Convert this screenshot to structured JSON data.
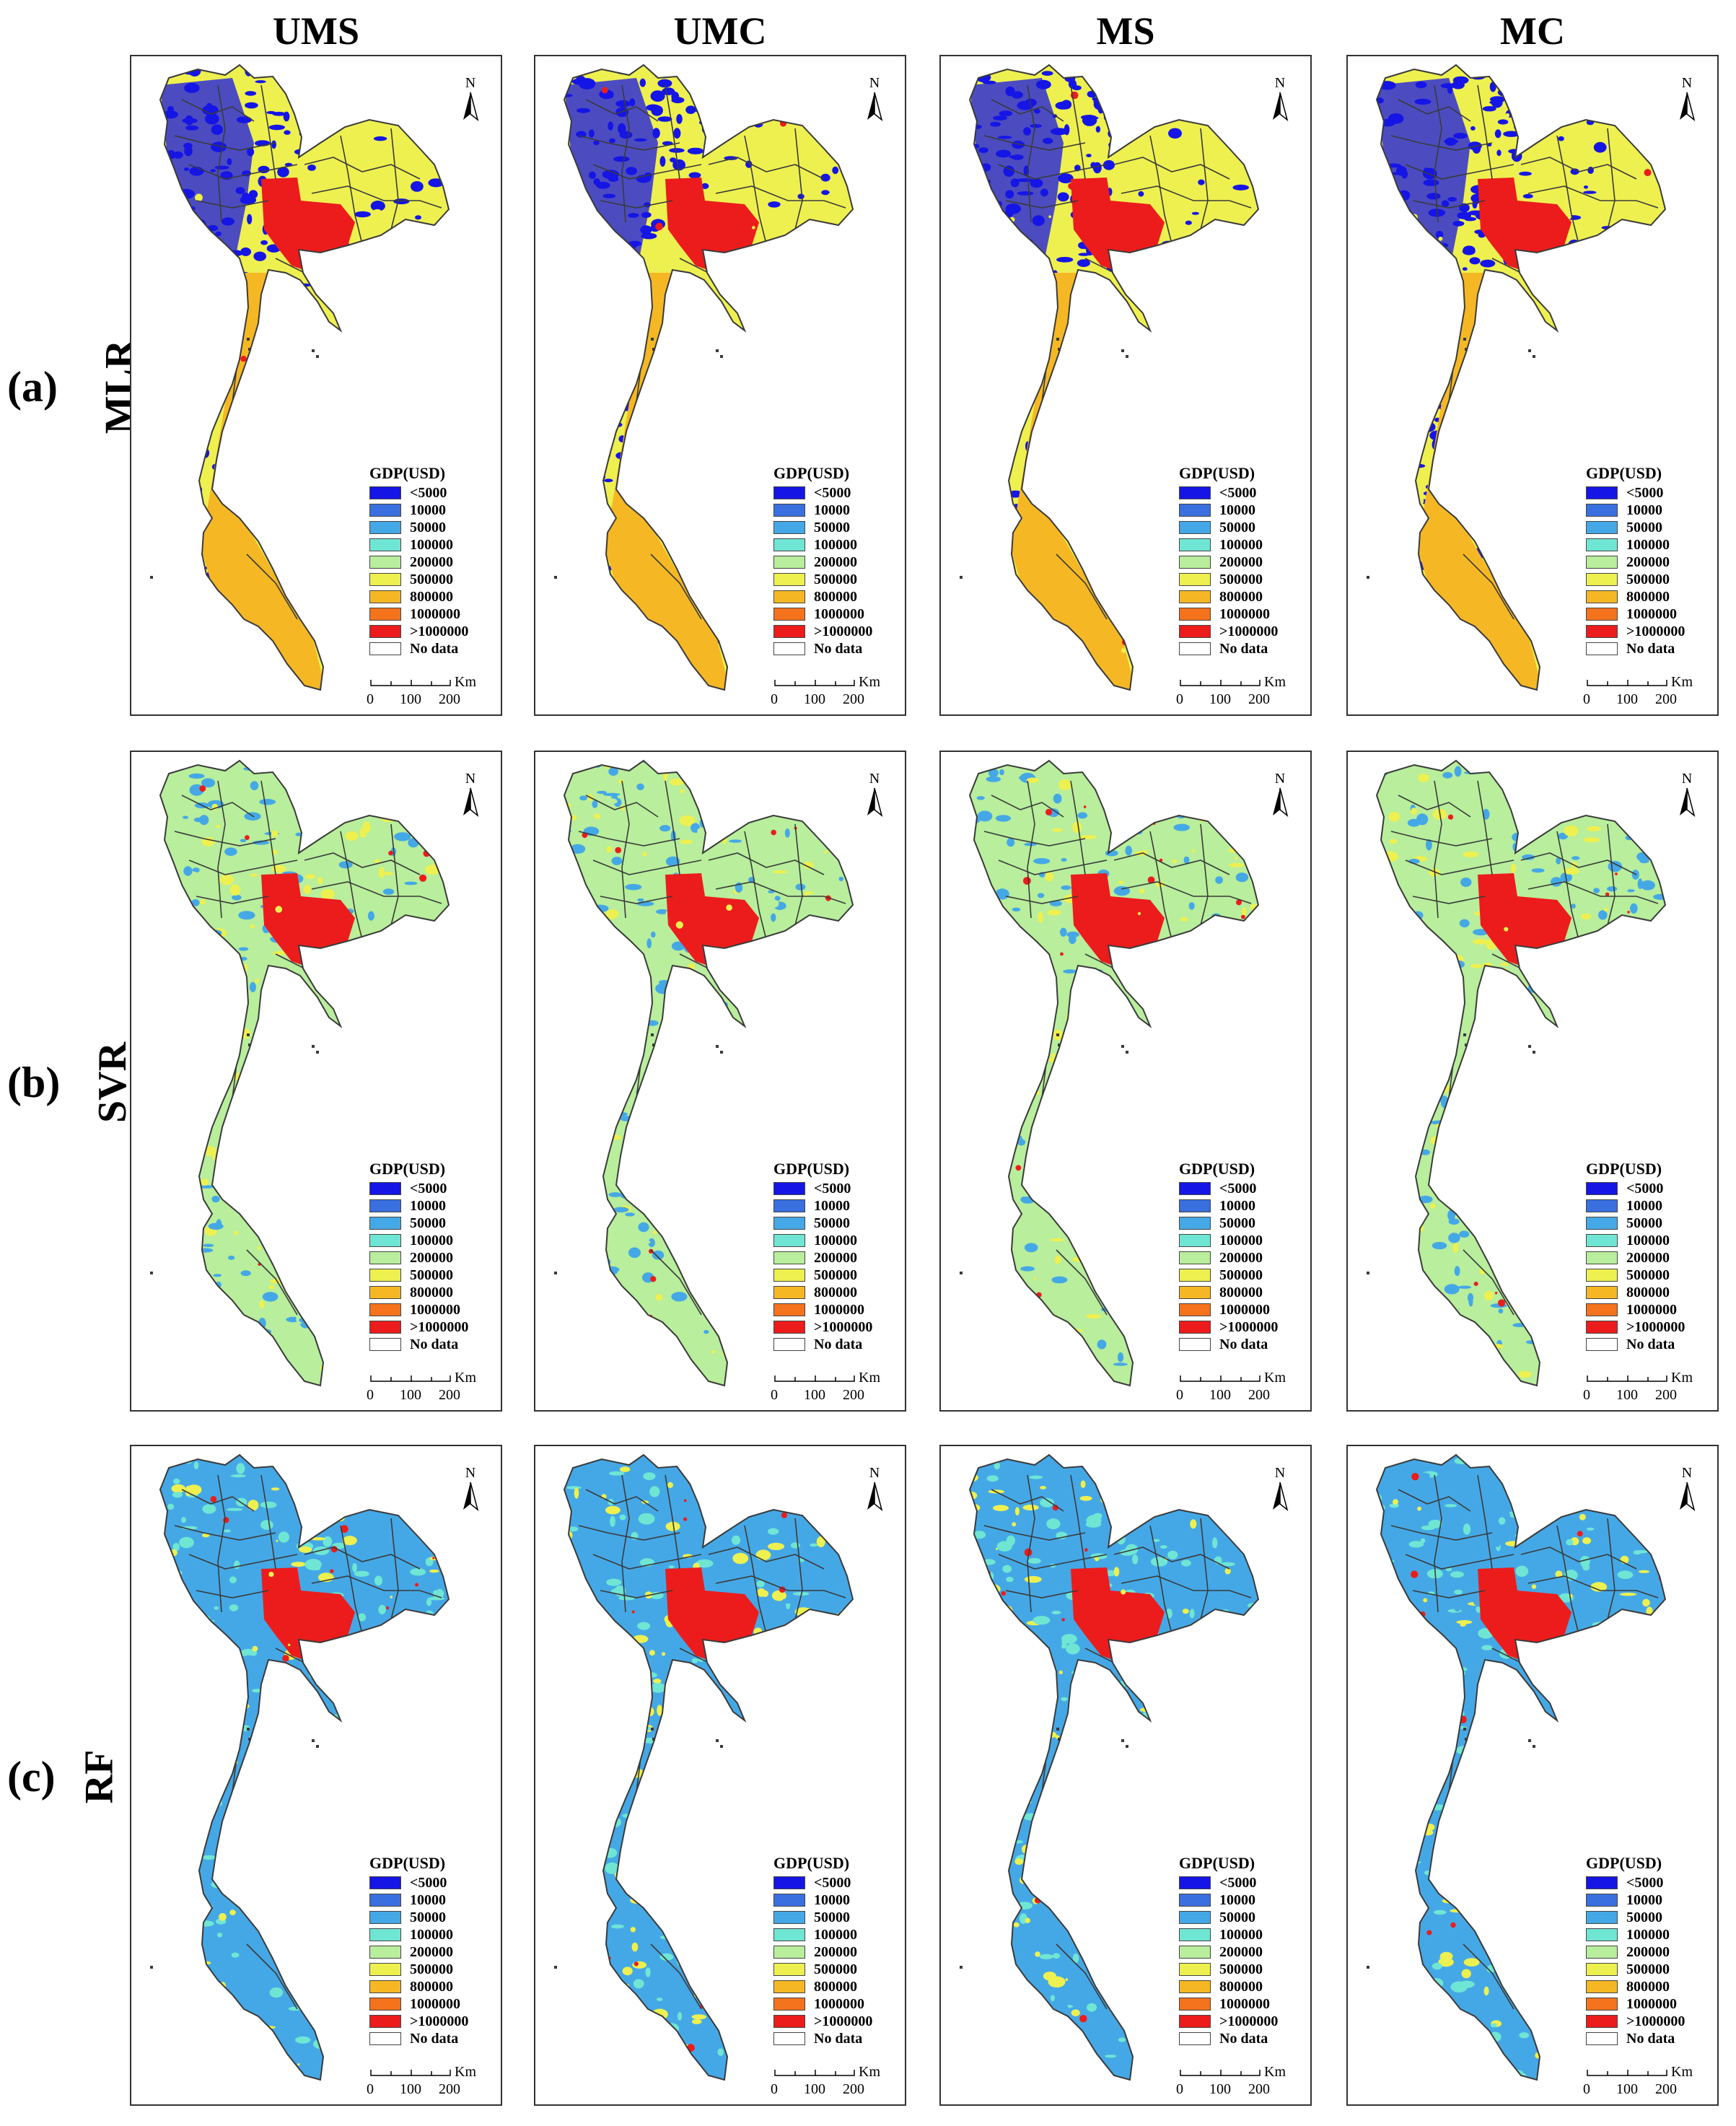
{
  "columns": [
    "UMS",
    "UMC",
    "MS",
    "MC"
  ],
  "rows": [
    {
      "letter": "(a)",
      "model": "MLR",
      "palette": "mlr"
    },
    {
      "letter": "(b)",
      "model": "SVR",
      "palette": "svr"
    },
    {
      "letter": "(c)",
      "model": "RF",
      "palette": "rf"
    }
  ],
  "legend": {
    "title": "GDP(USD)",
    "items": [
      {
        "label": "<5000",
        "color": "#1515e6"
      },
      {
        "label": "10000",
        "color": "#3a6fe0"
      },
      {
        "label": "50000",
        "color": "#45a8e6"
      },
      {
        "label": "100000",
        "color": "#6fe6d4"
      },
      {
        "label": "200000",
        "color": "#b8ee9c"
      },
      {
        "label": "500000",
        "color": "#eef050"
      },
      {
        "label": "800000",
        "color": "#f5b824"
      },
      {
        "label": "1000000",
        "color": "#f4731c"
      },
      {
        "label": ">1000000",
        "color": "#ec1c1c"
      },
      {
        "label": "No data",
        "color": "#ffffff"
      }
    ]
  },
  "north_label": "N",
  "scale": {
    "unit": "Km",
    "ticks": [
      "0",
      "100",
      "200"
    ]
  },
  "colors": {
    "mlr_base": "#eef050",
    "mlr_low": "#1515e6",
    "mlr_mid": "#f5b824",
    "mlr_high": "#ec1c1c",
    "svr_base": "#b8ee9c",
    "svr_low": "#45a8e6",
    "svr_mid": "#eef050",
    "svr_high": "#ec1c1c",
    "rf_base": "#45a8e6",
    "rf_low": "#6fe6d4",
    "rf_mid": "#eef050",
    "rf_high": "#ec1c1c",
    "boundary": "#3a3a3a"
  }
}
